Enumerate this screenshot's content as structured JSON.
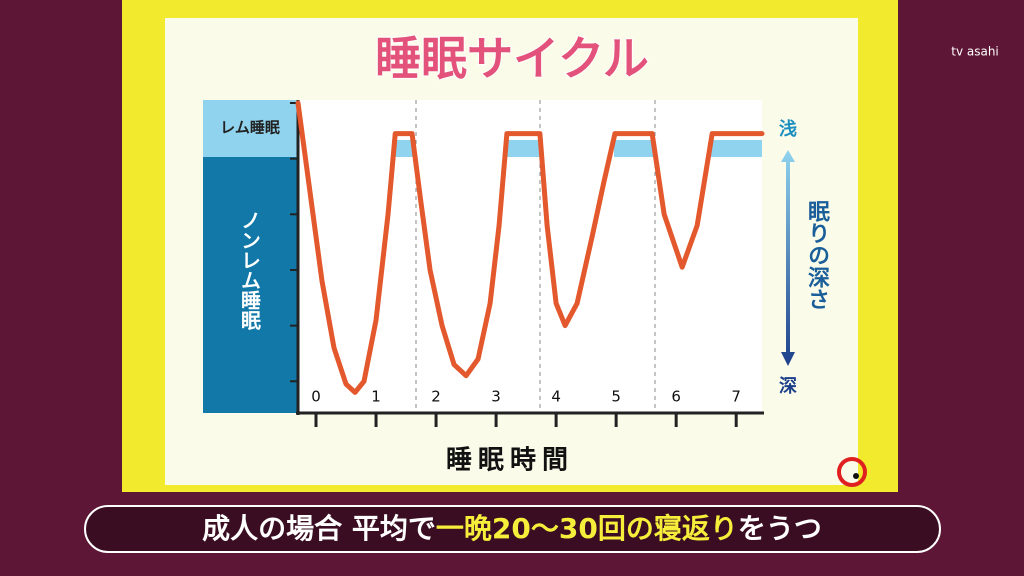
{
  "logo": "tv asahi",
  "caption": {
    "before": "成人の場合 平均で",
    "highlight": "一晩20～30回の寝返り",
    "after": "をうつ"
  },
  "chart_data": {
    "type": "line",
    "title": "睡眠サイクル",
    "x_label": "睡眠時間",
    "rem_label": "レム睡眠",
    "nonrem_label": "ノンレム睡眠",
    "depth_top": "浅",
    "depth_title": "眠りの深さ",
    "depth_bottom": "深",
    "xlim": [
      -0.3,
      7.43
    ],
    "xticks": [
      0,
      1,
      2,
      3,
      4,
      5,
      6,
      7
    ],
    "ylim": [
      0,
      5.57
    ],
    "yticks": [
      0,
      1,
      2,
      3,
      4,
      5
    ],
    "y_inverted": true,
    "series": [
      {
        "color": "#e3582c",
        "x": [
          -0.3,
          -0.1,
          0.1,
          0.3,
          0.5,
          0.65,
          0.8,
          1.0,
          1.2,
          1.32,
          1.6,
          1.75,
          1.9,
          2.1,
          2.3,
          2.5,
          2.7,
          2.9,
          3.05,
          3.18,
          3.73,
          3.85,
          4.0,
          4.15,
          4.35,
          4.6,
          4.8,
          4.98,
          5.6,
          5.8,
          6.1,
          6.35,
          6.6,
          7.43
        ],
        "values": [
          0,
          1.6,
          3.2,
          4.4,
          5.05,
          5.2,
          5.0,
          3.9,
          2.0,
          0.55,
          0.55,
          1.8,
          3.0,
          4.0,
          4.7,
          4.9,
          4.6,
          3.6,
          2.2,
          0.55,
          0.55,
          2.2,
          3.6,
          4.0,
          3.6,
          2.4,
          1.4,
          0.55,
          0.55,
          2.0,
          2.95,
          2.2,
          0.55,
          0.55
        ]
      }
    ]
  }
}
